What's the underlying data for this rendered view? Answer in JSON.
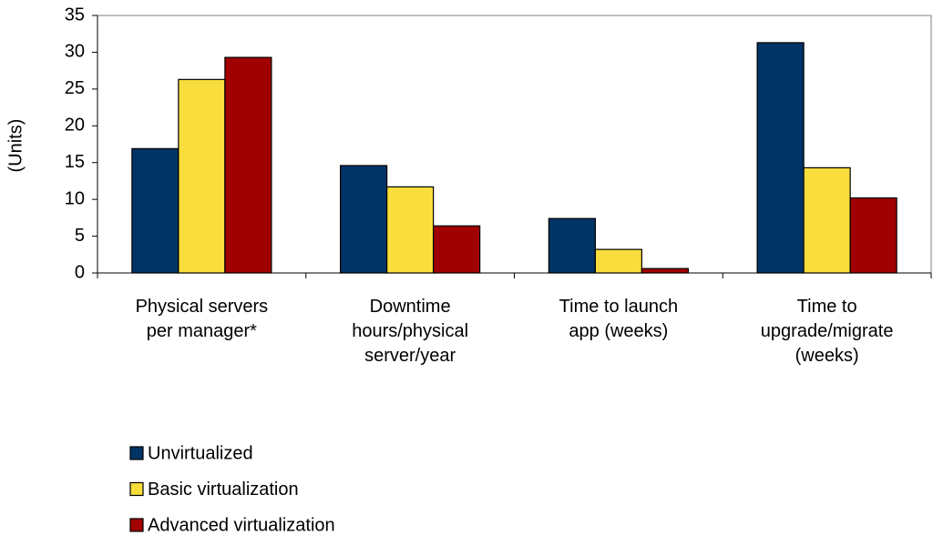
{
  "chart_data": {
    "type": "bar",
    "y_label": "(Units)",
    "categories": [
      "Physical servers\nper manager*",
      "Downtime\nhours/physical\nserver/year",
      "Time to launch\napp (weeks)",
      "Time to\nupgrade/migrate\n(weeks)"
    ],
    "series": [
      {
        "name": "Unvirtualized",
        "color": "#003366",
        "values": [
          16.9,
          14.6,
          7.4,
          31.3
        ]
      },
      {
        "name": "Basic virtualization",
        "color": "#f8dd3c",
        "values": [
          26.3,
          11.7,
          3.2,
          14.3
        ]
      },
      {
        "name": "Advanced virtualization",
        "color": "#a00000",
        "values": [
          29.3,
          6.4,
          0.6,
          10.2
        ]
      }
    ],
    "ylim": [
      0,
      35
    ],
    "yticks": [
      0,
      5,
      10,
      15,
      20,
      25,
      30,
      35
    ],
    "grid": false,
    "legend": "bottom-left"
  }
}
